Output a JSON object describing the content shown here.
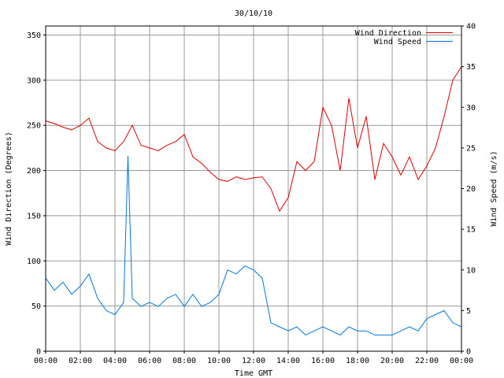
{
  "chart_data": {
    "type": "line",
    "title": "30/10/10",
    "xlabel": "Time GMT",
    "ylabel_left": "Wind Direction (Degrees)",
    "ylabel_right": "Wind Speed (m/s)",
    "x_tick_labels": [
      "00:00",
      "02:00",
      "04:00",
      "06:00",
      "08:00",
      "10:00",
      "12:00",
      "14:00",
      "16:00",
      "18:00",
      "20:00",
      "22:00",
      "00:00"
    ],
    "x_range_hours": [
      0,
      24
    ],
    "ylim_left": [
      0,
      360
    ],
    "ylim_right": [
      0,
      40
    ],
    "y_left_ticks": [
      0,
      50,
      100,
      150,
      200,
      250,
      300,
      350
    ],
    "y_right_ticks": [
      0,
      5,
      10,
      15,
      20,
      25,
      30,
      35,
      40
    ],
    "grid": true,
    "legend_position": "top-right",
    "series": [
      {
        "name": "Wind Direction",
        "axis": "left",
        "color": "#dd0000",
        "x": [
          0,
          0.5,
          1,
          1.5,
          2,
          2.5,
          3,
          3.5,
          4,
          4.5,
          5,
          5.5,
          6,
          6.5,
          7,
          7.5,
          8,
          8.5,
          9,
          9.5,
          10,
          10.5,
          11,
          11.5,
          12,
          12.5,
          13,
          13.5,
          14,
          14.5,
          15,
          15.5,
          16,
          16.5,
          17,
          17.5,
          18,
          18.5,
          19,
          19.5,
          20,
          20.5,
          21,
          21.5,
          22,
          22.5,
          23,
          23.5,
          24
        ],
        "values": [
          255,
          252,
          248,
          245,
          250,
          258,
          232,
          225,
          222,
          232,
          250,
          228,
          225,
          222,
          228,
          232,
          240,
          215,
          208,
          198,
          190,
          188,
          193,
          190,
          192,
          193,
          180,
          155,
          170,
          210,
          200,
          210,
          270,
          250,
          200,
          280,
          225,
          260,
          190,
          230,
          215,
          195,
          215,
          190,
          205,
          225,
          260,
          300,
          315
        ]
      },
      {
        "name": "Wind Speed",
        "axis": "right",
        "color": "#0077dd",
        "x": [
          0,
          0.5,
          1,
          1.5,
          2,
          2.5,
          3,
          3.5,
          4,
          4.5,
          4.75,
          5,
          5.5,
          6,
          6.5,
          7,
          7.5,
          8,
          8.5,
          9,
          9.5,
          10,
          10.5,
          11,
          11.5,
          12,
          12.5,
          13,
          13.5,
          14,
          14.5,
          15,
          15.5,
          16,
          16.5,
          17,
          17.5,
          18,
          18.5,
          19,
          19.5,
          20,
          20.5,
          21,
          21.5,
          22,
          22.5,
          23,
          23.5,
          24
        ],
        "values": [
          9,
          7.5,
          8.5,
          7,
          8,
          9.5,
          6.5,
          5,
          4.5,
          6,
          24,
          6.5,
          5.5,
          6,
          5.5,
          6.5,
          7,
          5.5,
          7,
          5.5,
          6,
          7,
          10,
          9.5,
          10.5,
          10,
          9,
          3.5,
          3,
          2.5,
          3,
          2,
          2.5,
          3,
          2.5,
          2,
          3,
          2.5,
          2.5,
          2,
          2,
          2,
          2.5,
          3,
          2.5,
          4,
          4.5,
          5,
          3.5,
          3
        ]
      }
    ]
  }
}
